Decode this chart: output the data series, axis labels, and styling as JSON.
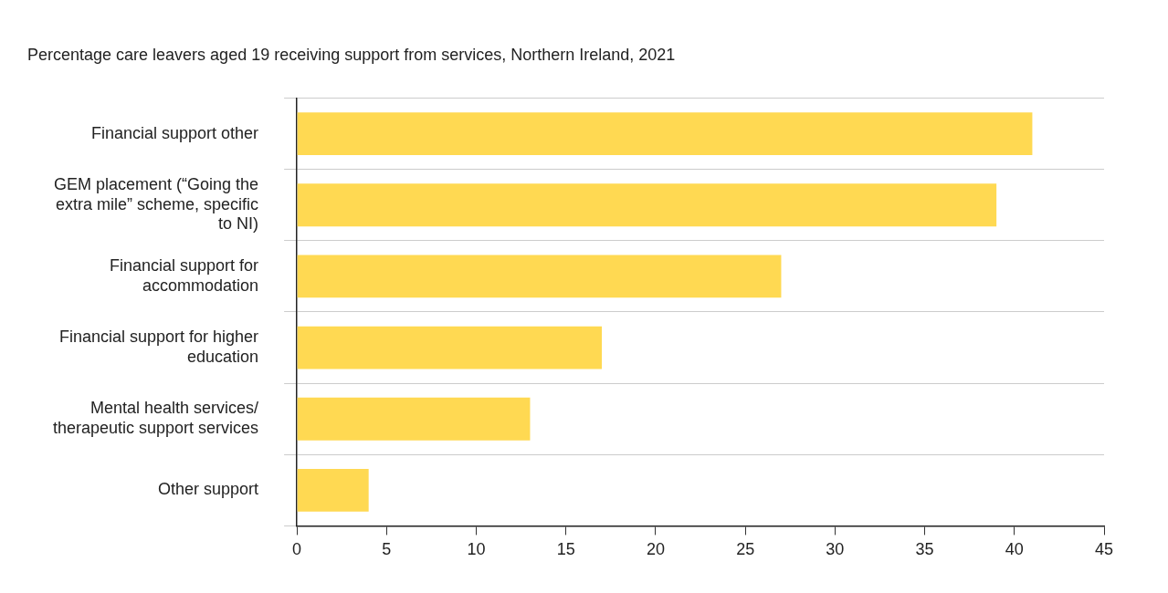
{
  "chart_data": {
    "type": "bar",
    "orientation": "horizontal",
    "title": "Percentage care leavers aged 19 receiving support from services, Northern Ireland, 2021",
    "categories": [
      "Financial support other",
      "GEM placement (“Going the extra mile” scheme, specific to NI)",
      "Financial support for accommodation",
      "Financial support for higher education",
      "Mental health services/ therapeutic support services",
      "Other support"
    ],
    "values": [
      41,
      39,
      27,
      17,
      13,
      4
    ],
    "color": "#ffd952",
    "xlim": [
      0,
      45
    ],
    "xticks": [
      0,
      5,
      10,
      15,
      20,
      25,
      30,
      35,
      40,
      45
    ],
    "grid": "y"
  }
}
